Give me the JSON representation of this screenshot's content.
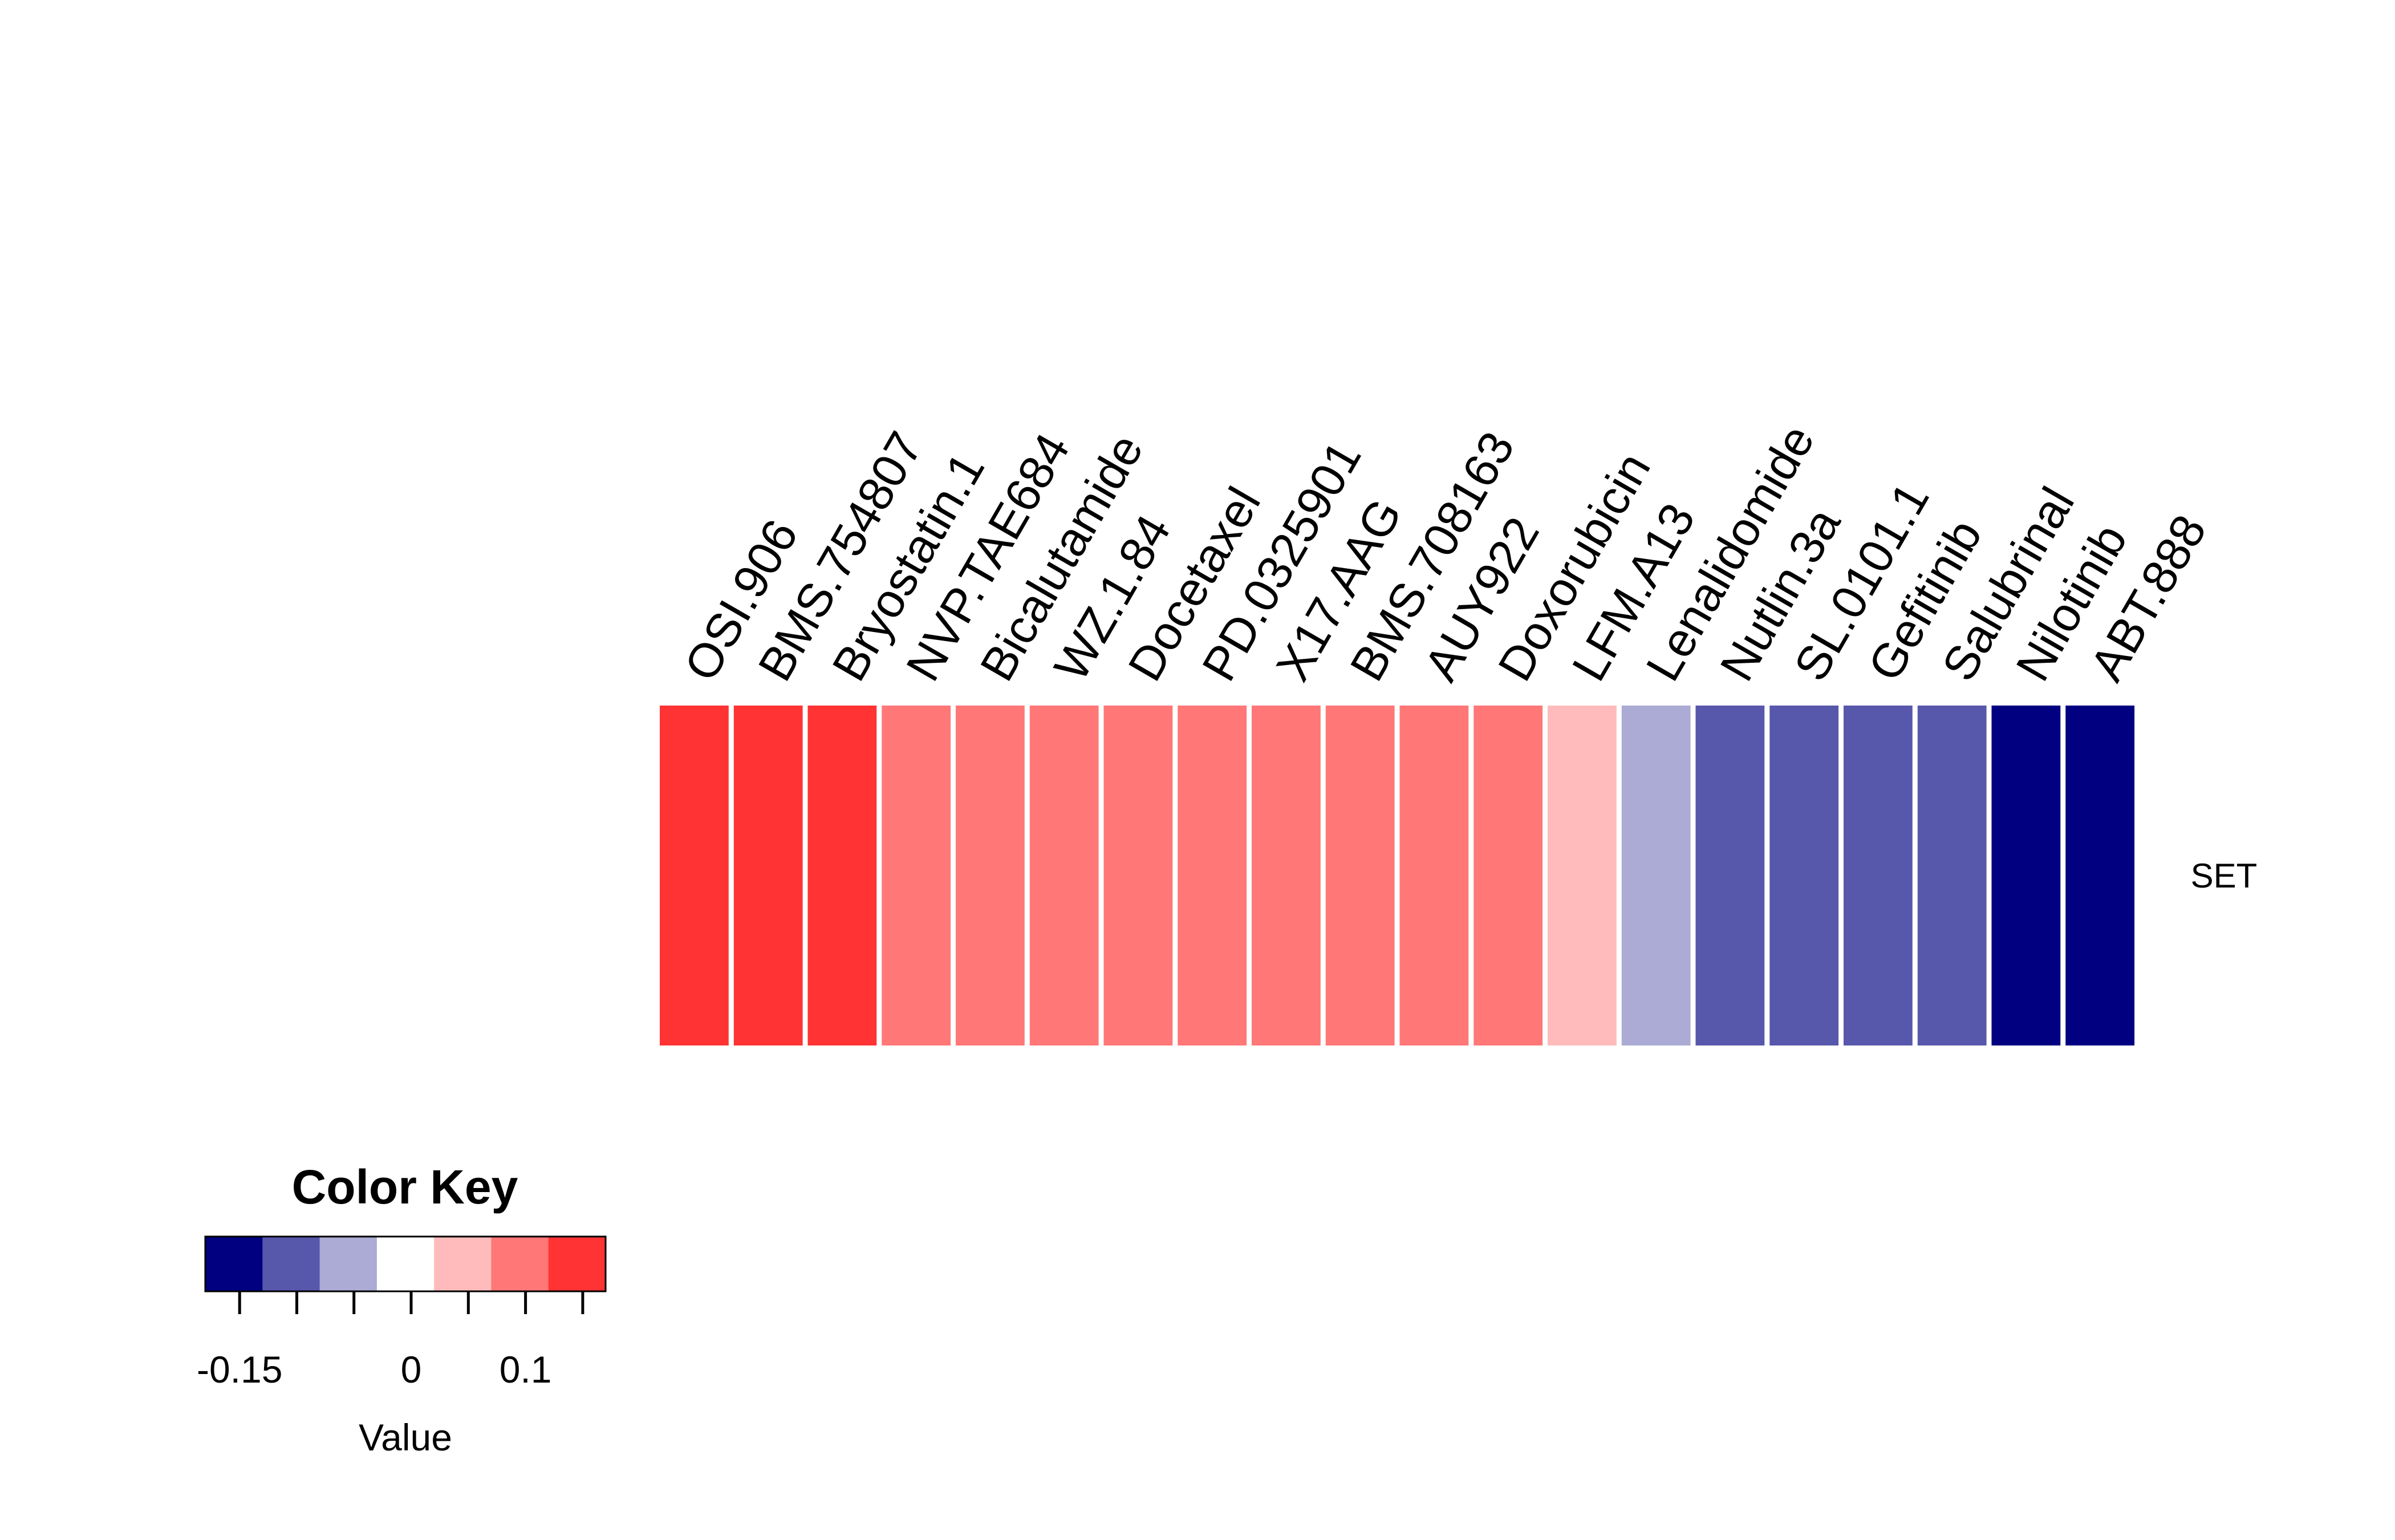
{
  "chart_data": {
    "type": "heatmap",
    "rows": [
      "SET"
    ],
    "columns": [
      "OSI.906",
      "BMS.754807",
      "Bryostatin.1",
      "NVP.TAE684",
      "Bicalutamide",
      "WZ.1.84",
      "Docetaxel",
      "PD.0325901",
      "X17.AAG",
      "BMS.708163",
      "AUY922",
      "Doxorubicin",
      "LFM.A13",
      "Lenalidomide",
      "Nutlin.3a",
      "SL.0101.1",
      "Gefitinib",
      "Salubrinal",
      "Nilotinib",
      "ABT.888"
    ],
    "values": [
      [
        0.13,
        0.13,
        0.13,
        0.08,
        0.08,
        0.08,
        0.08,
        0.08,
        0.08,
        0.08,
        0.08,
        0.08,
        0.03,
        -0.05,
        -0.1,
        -0.1,
        -0.1,
        -0.1,
        -0.16,
        -0.16
      ]
    ],
    "colors": [
      "#FF3333",
      "#FF3333",
      "#FF3333",
      "#FF7777",
      "#FF7777",
      "#FF7777",
      "#FF7777",
      "#FF7777",
      "#FF7777",
      "#FF7777",
      "#FF7777",
      "#FF7777",
      "#FFBBBB",
      "#ABABD5",
      "#5757AB",
      "#5757AB",
      "#5757AB",
      "#5757AB",
      "#000080",
      "#000080"
    ],
    "color_key": {
      "title": "Color Key",
      "xlabel": "Value",
      "palette": [
        "#000080",
        "#5757AB",
        "#ABABD5",
        "#FFFFFF",
        "#FFBBBB",
        "#FF7777",
        "#FF3333"
      ],
      "range": [
        -0.18,
        0.17
      ],
      "ticks": [
        -0.15,
        -0.1,
        -0.05,
        0,
        0.05,
        0.1,
        0.15
      ],
      "tick_labels": [
        {
          "value": -0.15,
          "label": "-0.15"
        },
        {
          "value": 0,
          "label": "0"
        },
        {
          "value": 0.1,
          "label": "0.1"
        }
      ]
    }
  }
}
